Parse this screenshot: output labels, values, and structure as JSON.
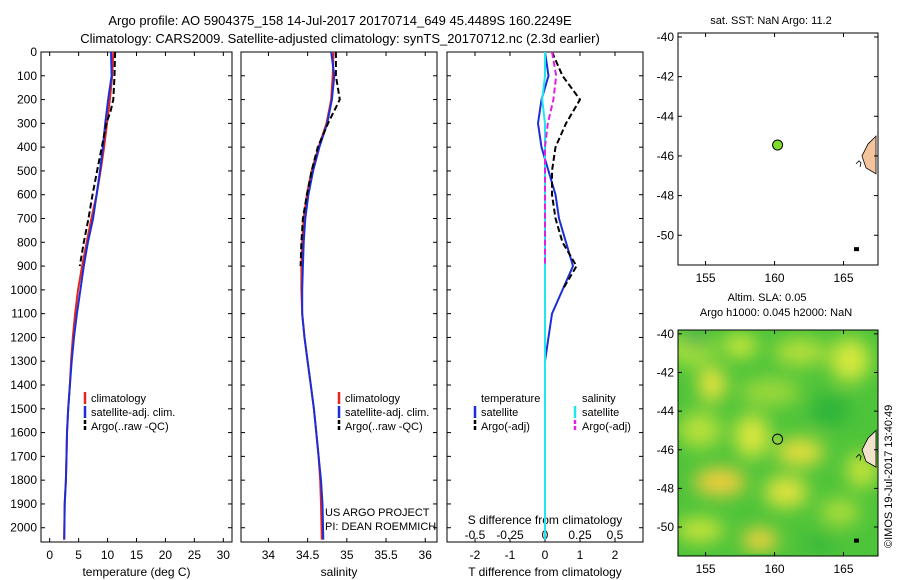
{
  "title": {
    "line1": "Argo profile: AO 5904375_158 14-Jul-2017 20170714_649 45.4489S 160.2249E",
    "line2": "Climatology: CARS2009. Satellite-adjusted climatology: synTS_20170712.nc (2.3d earlier)"
  },
  "colors": {
    "climatology": "#e8221c",
    "satellite": "#1c2fd6",
    "argo": "#000000",
    "s_satellite": "#22e6ee",
    "s_argo": "#e020e0",
    "float_marker": "#7fdc2a",
    "land": "#f4c49c"
  },
  "depth_axis": {
    "ticks": [
      "0",
      "100",
      "200",
      "300",
      "400",
      "500",
      "600",
      "700",
      "800",
      "900",
      "1000",
      "1100",
      "1200",
      "1300",
      "1400",
      "1500",
      "1600",
      "1700",
      "1800",
      "1900",
      "2000"
    ]
  },
  "chart_data": [
    {
      "type": "line",
      "xlabel": "temperature (deg C)",
      "xticks": [
        "0",
        "5",
        "10",
        "15",
        "20",
        "25",
        "30"
      ],
      "xlim": [
        -1.5,
        31.5
      ],
      "ylim": [
        2060,
        0
      ],
      "legend": {
        "placement": "center-bottom",
        "items": [
          "climatology",
          "satellite-adj. clim.",
          "Argo(..raw -QC)"
        ]
      },
      "series": [
        {
          "name": "climatology",
          "x": [
            11.0,
            10.8,
            10.4,
            9.9,
            9.4,
            8.8,
            8.1,
            7.2,
            6.4,
            5.6,
            4.9,
            4.4,
            4.0,
            3.7,
            3.5,
            3.2,
            3.0,
            2.9,
            2.8,
            2.6,
            2.5
          ],
          "y": [
            0,
            100,
            200,
            300,
            400,
            500,
            600,
            700,
            800,
            900,
            1000,
            1100,
            1200,
            1300,
            1400,
            1500,
            1600,
            1700,
            1800,
            1900,
            2050
          ]
        },
        {
          "name": "satellite-adj. clim.",
          "x": [
            10.6,
            10.7,
            10.1,
            9.6,
            9.2,
            8.7,
            8.1,
            7.5,
            6.6,
            5.9,
            5.3,
            4.7,
            4.2,
            3.8,
            3.5,
            3.2,
            3.0,
            2.9,
            2.8,
            2.6,
            2.5
          ],
          "y": [
            0,
            100,
            200,
            300,
            400,
            500,
            600,
            700,
            800,
            900,
            1000,
            1100,
            1200,
            1300,
            1400,
            1500,
            1600,
            1700,
            1800,
            1900,
            2050
          ]
        },
        {
          "name": "Argo(..raw -QC)",
          "x": [
            11.3,
            11.2,
            11.0,
            10.5,
            9.8,
            9.0,
            8.2,
            7.4,
            6.7,
            5.9,
            5.2
          ],
          "y": [
            0,
            100,
            200,
            250,
            300,
            400,
            500,
            600,
            700,
            800,
            900
          ]
        }
      ]
    },
    {
      "type": "line",
      "xlabel": "salinity",
      "xticks": [
        "34",
        "34.5",
        "35",
        "35.5",
        "36"
      ],
      "xlim": [
        33.65,
        36.15
      ],
      "ylim": [
        2060,
        0
      ],
      "legend": {
        "placement": "center-bottom",
        "items": [
          "climatology",
          "satellite-adj. clim.",
          "Argo(..raw -QC)"
        ]
      },
      "annotation": [
        "US ARGO PROJECT",
        "PI: DEAN ROEMMICH"
      ],
      "series": [
        {
          "name": "climatology",
          "x": [
            34.83,
            34.82,
            34.8,
            34.74,
            34.64,
            34.55,
            34.49,
            34.45,
            34.43,
            34.42,
            34.42,
            34.43,
            34.46,
            34.5,
            34.54,
            34.58,
            34.61,
            34.64,
            34.66,
            34.67,
            34.68
          ],
          "y": [
            0,
            100,
            200,
            300,
            400,
            500,
            600,
            700,
            800,
            900,
            1000,
            1100,
            1200,
            1300,
            1400,
            1500,
            1600,
            1700,
            1800,
            1900,
            2050
          ]
        },
        {
          "name": "satellite-adj. clim.",
          "x": [
            34.8,
            34.84,
            34.81,
            34.75,
            34.65,
            34.57,
            34.51,
            34.47,
            34.45,
            34.44,
            34.43,
            34.43,
            34.46,
            34.5,
            34.54,
            34.58,
            34.61,
            34.64,
            34.67,
            34.69,
            34.7
          ],
          "y": [
            0,
            100,
            200,
            300,
            400,
            500,
            600,
            700,
            800,
            900,
            1000,
            1100,
            1200,
            1300,
            1400,
            1500,
            1600,
            1700,
            1800,
            1900,
            2050
          ]
        },
        {
          "name": "Argo(..raw -QC)",
          "x": [
            34.86,
            34.86,
            34.91,
            34.76,
            34.63,
            34.55,
            34.49,
            34.44,
            34.42,
            34.41
          ],
          "y": [
            0,
            100,
            200,
            300,
            400,
            500,
            600,
            700,
            800,
            900
          ]
        }
      ]
    },
    {
      "type": "line",
      "xlabel": "T difference from climatology",
      "xlabel_top": "S difference from climatology",
      "xticks": [
        "-2",
        "-1",
        "0",
        "1",
        "2"
      ],
      "xticks_top": [
        "-0.5",
        "-0.25",
        "0",
        "0.25",
        "0.5"
      ],
      "xlim": [
        -2.8,
        2.8
      ],
      "ylim": [
        2060,
        0
      ],
      "legend": {
        "placement": "center-bottom",
        "headers": [
          "temperature",
          "salinity"
        ],
        "items": [
          "satellite",
          "Argo(-adj)",
          "satellite",
          "Argo(-adj)"
        ]
      },
      "series": [
        {
          "name": "temperature satellite",
          "x": [
            0.0,
            0.1,
            -0.1,
            -0.2,
            -0.1,
            0.1,
            0.3,
            0.4,
            0.6,
            0.8,
            0.5,
            0.2,
            0.1,
            0.0,
            0.0,
            0.0,
            0.0,
            0.0,
            0.0,
            0.0,
            0.0
          ],
          "y": [
            0,
            100,
            200,
            300,
            400,
            500,
            600,
            700,
            800,
            900,
            1000,
            1100,
            1200,
            1300,
            1400,
            1500,
            1600,
            1700,
            1800,
            1900,
            2050
          ]
        },
        {
          "name": "temperature Argo(-adj)",
          "x": [
            0.2,
            0.5,
            1.0,
            0.6,
            0.3,
            0.2,
            0.2,
            0.3,
            0.5,
            0.9,
            0.5
          ],
          "y": [
            0,
            100,
            200,
            300,
            400,
            500,
            600,
            700,
            800,
            900,
            1000
          ]
        },
        {
          "name": "salinity satellite",
          "x": [
            0.0,
            0.0,
            -0.02,
            0.0,
            0.0,
            0.0,
            0.0,
            0.0,
            0.0,
            0.0,
            0.0,
            0.0,
            0.0,
            0.0,
            0.0,
            0.0,
            0.0,
            0.0,
            0.0,
            0.0,
            0.0
          ],
          "y": [
            0,
            100,
            200,
            300,
            400,
            500,
            600,
            700,
            800,
            900,
            1000,
            1100,
            1200,
            1300,
            1400,
            1500,
            1600,
            1700,
            1800,
            1900,
            2050
          ]
        },
        {
          "name": "salinity Argo(-adj)",
          "x": [
            0.05,
            0.08,
            0.06,
            0.02,
            0.0,
            0.0,
            0.0,
            0.0,
            0.0,
            0.0
          ],
          "y": [
            0,
            100,
            200,
            300,
            400,
            500,
            600,
            700,
            800,
            900
          ]
        }
      ]
    },
    {
      "type": "scatter",
      "title": "sat. SST: NaN Argo: 11.2",
      "xticks": [
        "155",
        "160",
        "165"
      ],
      "yticks": [
        "-40",
        "-42",
        "-44",
        "-46",
        "-48",
        "-50"
      ],
      "xlim": [
        153.0,
        167.5
      ],
      "ylim": [
        -51.5,
        -39.8
      ],
      "points": [
        {
          "x": 160.22,
          "y": -45.45
        }
      ]
    },
    {
      "type": "heatmap",
      "title": "Altim. SLA: 0.05",
      "subtitle": "Argo h1000: 0.045 h2000: NaN",
      "xticks": [
        "155",
        "160",
        "165"
      ],
      "yticks": [
        "-40",
        "-42",
        "-44",
        "-46",
        "-48",
        "-50"
      ],
      "xlim": [
        153.0,
        167.5
      ],
      "ylim": [
        -51.5,
        -39.8
      ],
      "points": [
        {
          "x": 160.22,
          "y": -45.45
        }
      ]
    }
  ],
  "footer": "©IMOS 19-Jul-2017 13:40:49"
}
